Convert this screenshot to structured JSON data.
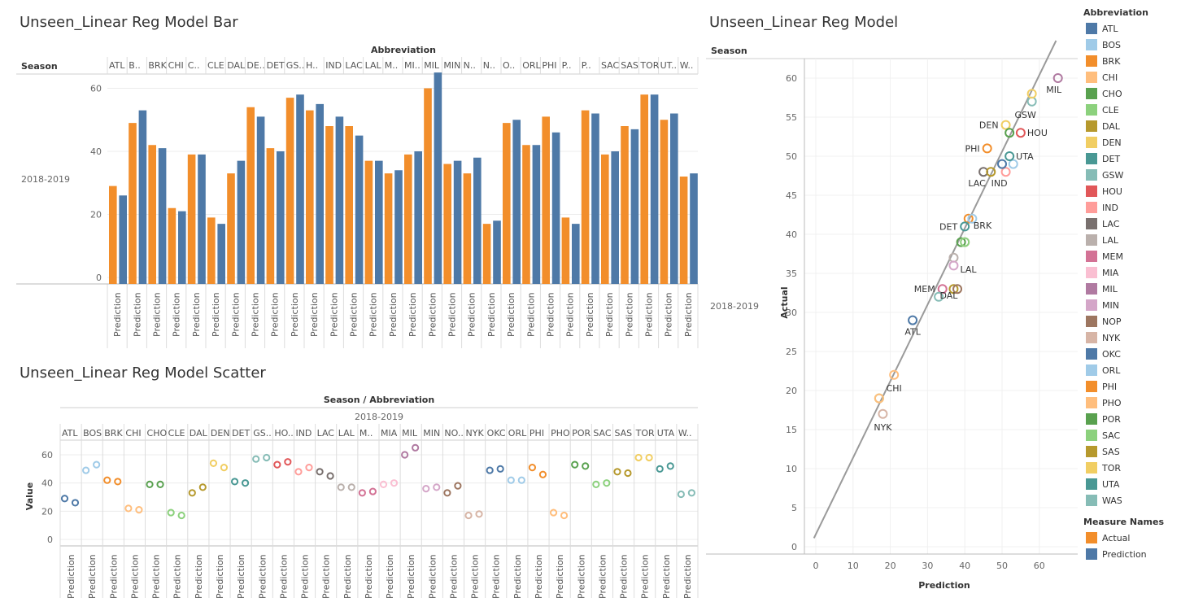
{
  "dashboard": {
    "bar_title": "Unseen_Linear Reg Model Bar",
    "scatter_title": "Unseen_Linear Reg Model Scatter",
    "main_title": "Unseen_Linear Reg Model",
    "bar_col_header": "Abbreviation",
    "bar_row_header": "Season",
    "season": "2018-2019",
    "scatter_col_header": "Season / Abbreviation",
    "scatter_y_label": "Value",
    "main_row_header": "Season",
    "main_x_label": "Prediction",
    "main_y_label": "Actual",
    "measure_label": "Prediction",
    "legend": {
      "abbr_title": "Abbreviation",
      "measure_title": "Measure Names",
      "measures": [
        {
          "name": "Actual",
          "color": "#F28E2B"
        },
        {
          "name": "Prediction",
          "color": "#4E79A7"
        }
      ]
    }
  },
  "teams": [
    {
      "abbr": "ATL",
      "color": "#4E79A7"
    },
    {
      "abbr": "BOS",
      "color": "#A0CBE8"
    },
    {
      "abbr": "BRK",
      "color": "#F28E2B"
    },
    {
      "abbr": "CHI",
      "color": "#FFBE7D"
    },
    {
      "abbr": "CHO",
      "color": "#59A14F"
    },
    {
      "abbr": "CLE",
      "color": "#8CD17D"
    },
    {
      "abbr": "DAL",
      "color": "#B6992D"
    },
    {
      "abbr": "DEN",
      "color": "#F1CE63"
    },
    {
      "abbr": "DET",
      "color": "#499894"
    },
    {
      "abbr": "GSW",
      "color": "#86BCB6"
    },
    {
      "abbr": "HOU",
      "color": "#E15759"
    },
    {
      "abbr": "IND",
      "color": "#FF9D9A"
    },
    {
      "abbr": "LAC",
      "color": "#79706E"
    },
    {
      "abbr": "LAL",
      "color": "#BAB0AC"
    },
    {
      "abbr": "MEM",
      "color": "#D37295"
    },
    {
      "abbr": "MIA",
      "color": "#FABFD2"
    },
    {
      "abbr": "MIL",
      "color": "#B07AA1"
    },
    {
      "abbr": "MIN",
      "color": "#D4A6C8"
    },
    {
      "abbr": "NOP",
      "color": "#9D7660"
    },
    {
      "abbr": "NYK",
      "color": "#D7B5A6"
    },
    {
      "abbr": "OKC",
      "color": "#4E79A7"
    },
    {
      "abbr": "ORL",
      "color": "#A0CBE8"
    },
    {
      "abbr": "PHI",
      "color": "#F28E2B"
    },
    {
      "abbr": "PHO",
      "color": "#FFBE7D"
    },
    {
      "abbr": "POR",
      "color": "#59A14F"
    },
    {
      "abbr": "SAC",
      "color": "#8CD17D"
    },
    {
      "abbr": "SAS",
      "color": "#B6992D"
    },
    {
      "abbr": "TOR",
      "color": "#F1CE63"
    },
    {
      "abbr": "UTA",
      "color": "#499894"
    },
    {
      "abbr": "WAS",
      "color": "#86BCB6"
    }
  ],
  "bar_header_labels": [
    "ATL",
    "B..",
    "BRK",
    "CHI",
    "C..",
    "CLE",
    "DAL",
    "DE..",
    "DET",
    "GS..",
    "H..",
    "IND",
    "LAC",
    "LAL",
    "M..",
    "MI..",
    "MIL",
    "MIN",
    "N..",
    "N..",
    "O..",
    "ORL",
    "PHI",
    "P..",
    "P..",
    "SAC",
    "SAS",
    "TOR",
    "UT..",
    "W.."
  ],
  "scatter_header_labels": [
    "ATL",
    "BOS",
    "BRK",
    "CHI",
    "CHO",
    "CLE",
    "DAL",
    "DEN",
    "DET",
    "GS..",
    "HO..",
    "IND",
    "LAC",
    "LAL",
    "M..",
    "MIA",
    "MIL",
    "MIN",
    "NO..",
    "NYK",
    "OKC",
    "ORL",
    "PHI",
    "PHO",
    "POR",
    "SAC",
    "SAS",
    "TOR",
    "UTA",
    "W.."
  ],
  "chart_data": [
    {
      "type": "bar",
      "title": "Unseen_Linear Reg Model Bar",
      "categories": [
        "ATL",
        "BOS",
        "BRK",
        "CHI",
        "CHO",
        "CLE",
        "DAL",
        "DEN",
        "DET",
        "GSW",
        "HOU",
        "IND",
        "LAC",
        "LAL",
        "MEM",
        "MIA",
        "MIL",
        "MIN",
        "NOP",
        "NYK",
        "OKC",
        "ORL",
        "PHI",
        "PHO",
        "POR",
        "SAC",
        "SAS",
        "TOR",
        "UTA",
        "WAS"
      ],
      "series": [
        {
          "name": "Actual",
          "color": "#F28E2B",
          "values": [
            29,
            49,
            42,
            22,
            39,
            19,
            33,
            54,
            41,
            57,
            53,
            48,
            48,
            37,
            33,
            39,
            60,
            36,
            33,
            17,
            49,
            42,
            51,
            19,
            53,
            39,
            48,
            58,
            50,
            32
          ]
        },
        {
          "name": "Prediction",
          "color": "#4E79A7",
          "values": [
            26,
            53,
            41,
            21,
            39,
            17,
            37,
            51,
            40,
            58,
            55,
            51,
            45,
            37,
            34,
            40,
            65,
            37,
            38,
            18,
            50,
            42,
            46,
            17,
            52,
            40,
            47,
            58,
            52,
            33
          ]
        }
      ],
      "y_ticks": [
        0,
        20,
        40,
        60
      ],
      "ylim": [
        0,
        67
      ],
      "grid": true
    },
    {
      "type": "scatter",
      "title": "Unseen_Linear Reg Model Scatter",
      "ylabel": "Value",
      "categories": [
        "ATL",
        "BOS",
        "BRK",
        "CHI",
        "CHO",
        "CLE",
        "DAL",
        "DEN",
        "DET",
        "GSW",
        "HOU",
        "IND",
        "LAC",
        "LAL",
        "MEM",
        "MIA",
        "MIL",
        "MIN",
        "NOP",
        "NYK",
        "OKC",
        "ORL",
        "PHI",
        "PHO",
        "POR",
        "SAC",
        "SAS",
        "TOR",
        "UTA",
        "WAS"
      ],
      "series": [
        {
          "name": "Actual",
          "values": [
            29,
            49,
            42,
            22,
            39,
            19,
            33,
            54,
            41,
            57,
            53,
            48,
            48,
            37,
            33,
            39,
            60,
            36,
            33,
            17,
            49,
            42,
            51,
            19,
            53,
            39,
            48,
            58,
            50,
            32
          ]
        },
        {
          "name": "Prediction",
          "values": [
            26,
            53,
            41,
            21,
            39,
            17,
            37,
            51,
            40,
            58,
            55,
            51,
            45,
            37,
            34,
            40,
            65,
            37,
            38,
            18,
            50,
            42,
            46,
            17,
            52,
            40,
            47,
            58,
            52,
            33
          ]
        }
      ],
      "y_ticks": [
        0,
        20,
        40,
        60
      ],
      "ylim": [
        -3,
        68
      ],
      "grid": true
    },
    {
      "type": "scatter",
      "title": "Unseen_Linear Reg Model",
      "xlabel": "Prediction",
      "ylabel": "Actual",
      "xlim": [
        -3,
        68
      ],
      "ylim": [
        -1,
        64
      ],
      "x_ticks": [
        0,
        10,
        20,
        30,
        40,
        50,
        60
      ],
      "y_ticks": [
        0,
        5,
        10,
        15,
        20,
        25,
        30,
        35,
        40,
        45,
        50,
        55,
        60
      ],
      "trend_line": {
        "x": [
          -0.5,
          64.5
        ],
        "y": [
          1.1,
          64.8
        ]
      },
      "point_labels": {
        "ATL": "ATL",
        "BRK": "BRK",
        "CHI": "CHI",
        "DAL": "DAL",
        "DEN": "DEN",
        "DET": "DET",
        "GSW": "GSW",
        "HOU": "HOU",
        "IND": "IND",
        "LAC": "LAC",
        "LAL": "LAL",
        "MEM": "MEM",
        "MIL": "MIL",
        "NYK": "NYK",
        "PHI": "PHI",
        "UTA": "UTA"
      },
      "grid": true
    }
  ]
}
